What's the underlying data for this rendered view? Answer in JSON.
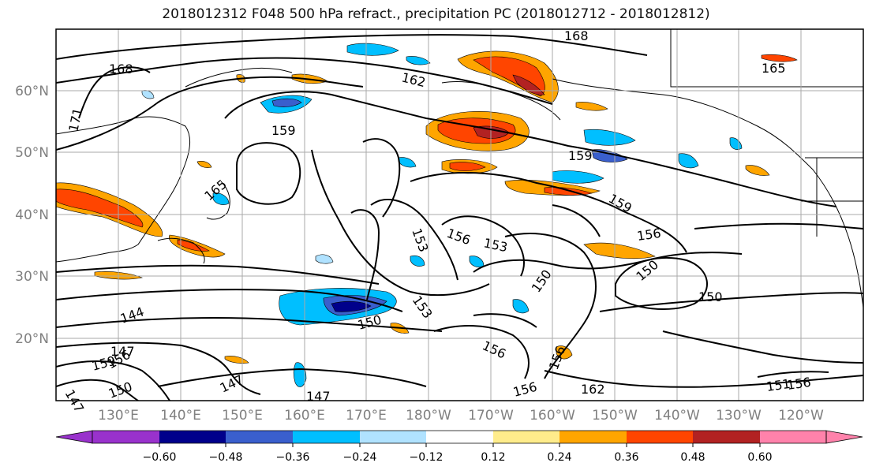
{
  "title": "2018012312 F048 500 hPa refract., precipitation PC (2018012712 - 2018012812)",
  "lat_labels": [
    "60°N",
    "50°N",
    "40°N",
    "30°N",
    "20°N"
  ],
  "lon_labels": [
    "130°E",
    "140°E",
    "150°E",
    "160°E",
    "170°E",
    "180°W",
    "170°W",
    "160°W",
    "150°W",
    "140°W",
    "130°W",
    "120°W"
  ],
  "contour_labels": [
    "168",
    "168",
    "171",
    "162",
    "165",
    "159",
    "159",
    "159",
    "165",
    "153",
    "156",
    "153",
    "156",
    "150",
    "150",
    "150",
    "153",
    "150",
    "144",
    "147",
    "147",
    "159",
    "156",
    "162",
    "156",
    "156",
    "151",
    "156",
    "147",
    "156",
    "150",
    "147"
  ],
  "colorbar": {
    "colors": [
      "#9932CC",
      "#00008B",
      "#3A5FCD",
      "#00BFFF",
      "#B0E2FF",
      "#FFFFFF",
      "#FFEC8B",
      "#FFA500",
      "#FF4500",
      "#B22222",
      "#FF82AB"
    ],
    "tick_labels": [
      "−0.60",
      "−0.48",
      "−0.36",
      "−0.24",
      "−0.12",
      "0.12",
      "0.24",
      "0.36",
      "0.48",
      "0.60"
    ]
  }
}
